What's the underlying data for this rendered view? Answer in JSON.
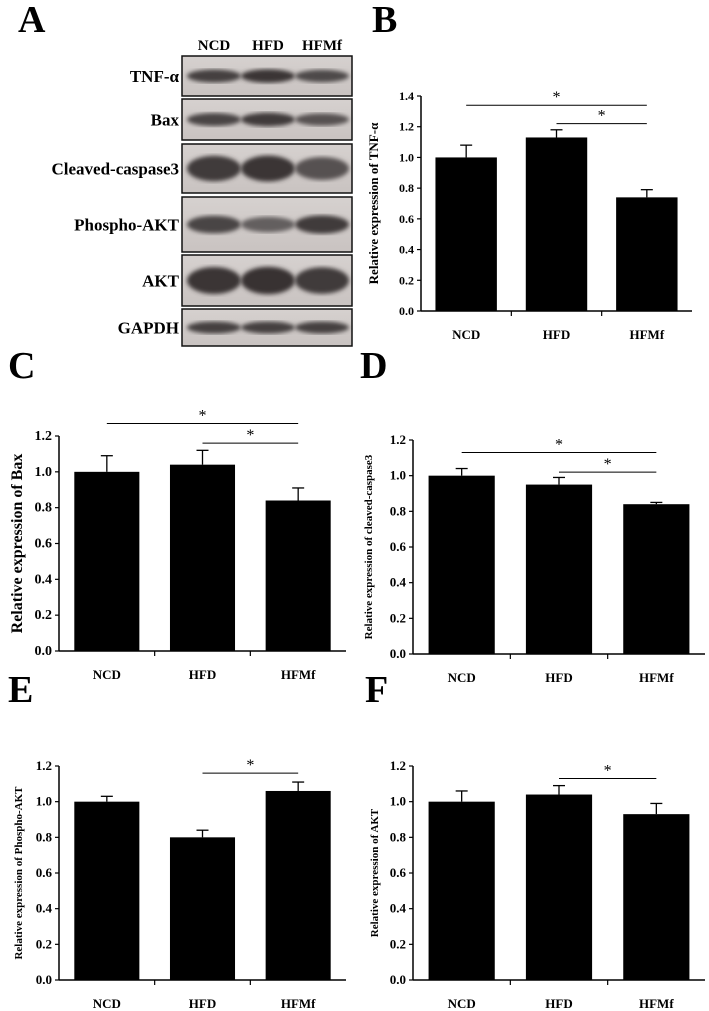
{
  "panel_labels": [
    "A",
    "B",
    "C",
    "D",
    "E",
    "F"
  ],
  "blot": {
    "lanes": [
      "NCD",
      "HFD",
      "HFMf"
    ],
    "rows": [
      {
        "label": "TNF-α",
        "intensity": [
          0.8,
          0.9,
          0.7
        ]
      },
      {
        "label": "Bax",
        "intensity": [
          0.75,
          0.85,
          0.6
        ]
      },
      {
        "label": "Cleaved-caspase3",
        "intensity": [
          0.85,
          0.9,
          0.6
        ]
      },
      {
        "label": "Phospho-AKT",
        "intensity": [
          0.75,
          0.45,
          0.85
        ]
      },
      {
        "label": "AKT",
        "intensity": [
          0.9,
          0.95,
          0.85
        ]
      },
      {
        "label": "GAPDH",
        "intensity": [
          0.8,
          0.8,
          0.8
        ]
      }
    ]
  },
  "chart_data": [
    {
      "panel": "B",
      "type": "bar",
      "categories": [
        "NCD",
        "HFD",
        "HFMf"
      ],
      "values": [
        1.0,
        1.13,
        0.74
      ],
      "errors": [
        0.08,
        0.05,
        0.05
      ],
      "ylabel": "Relative expression of TNF-α",
      "ylim": [
        0,
        1.4
      ],
      "yticks": [
        "0.0",
        "0.2",
        "0.4",
        "0.6",
        "0.8",
        "1.0",
        "1.2",
        "1.4"
      ],
      "significance": [
        {
          "from": "NCD",
          "to": "HFMf",
          "level": 1.34,
          "label": "*"
        },
        {
          "from": "HFD",
          "to": "HFMf",
          "level": 1.22,
          "label": "*"
        }
      ]
    },
    {
      "panel": "C",
      "type": "bar",
      "categories": [
        "NCD",
        "HFD",
        "HFMf"
      ],
      "values": [
        1.0,
        1.04,
        0.84
      ],
      "errors": [
        0.09,
        0.08,
        0.07
      ],
      "ylabel": "Relative expression of Bax",
      "ylim": [
        0,
        1.2
      ],
      "yticks": [
        "0.0",
        "0.2",
        "0.4",
        "0.6",
        "0.8",
        "1.0",
        "1.2"
      ],
      "significance": [
        {
          "from": "NCD",
          "to": "HFMf",
          "level": 1.27,
          "label": "*"
        },
        {
          "from": "HFD",
          "to": "HFMf",
          "level": 1.16,
          "label": "*"
        }
      ]
    },
    {
      "panel": "D",
      "type": "bar",
      "categories": [
        "NCD",
        "HFD",
        "HFMf"
      ],
      "values": [
        1.0,
        0.95,
        0.84
      ],
      "errors": [
        0.04,
        0.04,
        0.01
      ],
      "ylabel": "Relative expression of cleaved-caspase3",
      "ylim": [
        0,
        1.2
      ],
      "yticks": [
        "0.0",
        "0.2",
        "0.4",
        "0.6",
        "0.8",
        "1.0",
        "1.2"
      ],
      "significance": [
        {
          "from": "NCD",
          "to": "HFMf",
          "level": 1.13,
          "label": "*"
        },
        {
          "from": "HFD",
          "to": "HFMf",
          "level": 1.02,
          "label": "*"
        }
      ]
    },
    {
      "panel": "E",
      "type": "bar",
      "categories": [
        "NCD",
        "HFD",
        "HFMf"
      ],
      "values": [
        1.0,
        0.8,
        1.06
      ],
      "errors": [
        0.03,
        0.04,
        0.05
      ],
      "ylabel": "Relative expression of Phospho-AKT",
      "ylim": [
        0,
        1.2
      ],
      "yticks": [
        "0.0",
        "0.2",
        "0.4",
        "0.6",
        "0.8",
        "1.0",
        "1.2"
      ],
      "significance": [
        {
          "from": "HFD",
          "to": "HFMf",
          "level": 1.16,
          "label": "*"
        }
      ]
    },
    {
      "panel": "F",
      "type": "bar",
      "categories": [
        "NCD",
        "HFD",
        "HFMf"
      ],
      "values": [
        1.0,
        1.04,
        0.93
      ],
      "errors": [
        0.06,
        0.05,
        0.06
      ],
      "ylabel": "Relative expression of AKT",
      "ylim": [
        0,
        1.2
      ],
      "yticks": [
        "0.0",
        "0.2",
        "0.4",
        "0.6",
        "0.8",
        "1.0",
        "1.2"
      ],
      "significance": [
        {
          "from": "HFD",
          "to": "HFMf",
          "level": 1.13,
          "label": "*"
        }
      ]
    }
  ]
}
